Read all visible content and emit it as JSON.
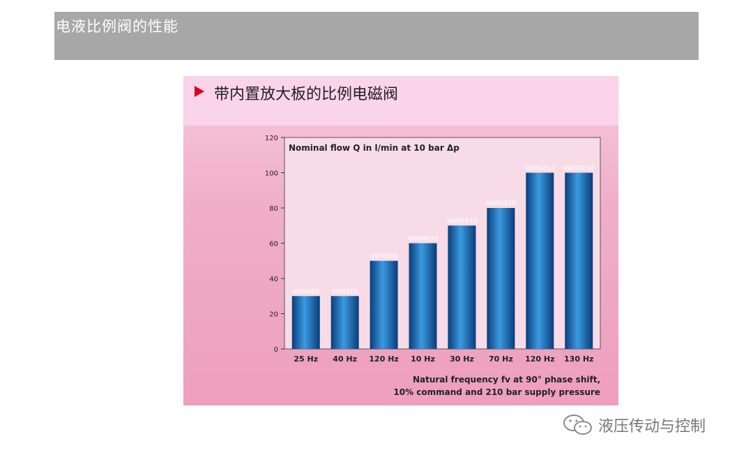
{
  "header": {
    "title": "电液比例阀的性能"
  },
  "panel": {
    "title": "带内置放大板的比例电磁阀"
  },
  "watermark": {
    "text": "液压传动与控制"
  },
  "colors": {
    "bar": "#1a66b8",
    "bar_light": "#3a9ae0",
    "bar_dark": "#0b3d7a",
    "accent": "#d8001f"
  },
  "chart_data": {
    "type": "bar",
    "title": "Nominal flow Q in l/min at 10 bar Δp",
    "categories": [
      "25 Hz",
      "40 Hz",
      "120 Hz",
      "10 Hz",
      "30 Hz",
      "70 Hz",
      "120 Hz",
      "130 Hz"
    ],
    "bar_labels": [
      "4WRAE6",
      "4WREE6",
      "4WRSE6",
      "4WRAE10",
      "4WREE10",
      "4WRSE10",
      "4WRGE10",
      "4WRDE10"
    ],
    "values": [
      30,
      30,
      50,
      60,
      70,
      80,
      100,
      100
    ],
    "ylim": [
      0,
      120
    ],
    "yticks": [
      0,
      20,
      40,
      60,
      80,
      100,
      120
    ],
    "xlabel_lines": [
      "Natural frequency fv at 90° phase shift,",
      "10% command and 210 bar supply pressure"
    ],
    "grid": false
  }
}
